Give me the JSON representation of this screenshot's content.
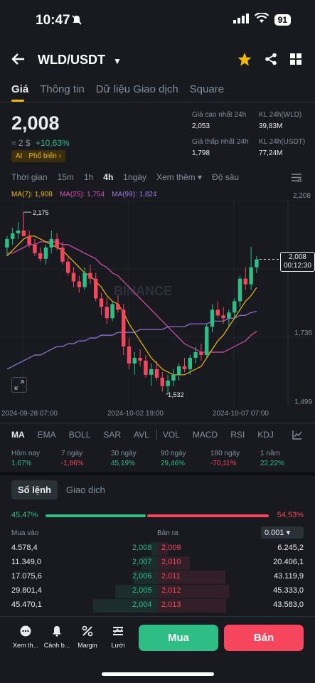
{
  "status": {
    "time": "10:47",
    "battery": "91"
  },
  "header": {
    "title": "WLD/USDT"
  },
  "tabs": [
    "Giá",
    "Thông tin",
    "Dữ liệu Giao dịch",
    "Square"
  ],
  "price": {
    "last": "2,008",
    "approx": "≈ 2 $",
    "change": "+10,63%",
    "ai_label": "AI",
    "ai_tag": "Phổ biến ›"
  },
  "stats": {
    "high_label": "Giá cao nhất 24h",
    "high_value": "2,053",
    "vol_wld_label": "KL 24h(WLD)",
    "vol_wld_value": "39,83M",
    "low_label": "Giá thấp nhất 24h",
    "low_value": "1,798",
    "vol_usdt_label": "KL 24h(USDT)",
    "vol_usdt_value": "77,24M"
  },
  "chart_tabs": [
    "Thời gian",
    "15m",
    "1h",
    "4h",
    "1ngày",
    "Xem thêm ▾",
    "Độ sâu"
  ],
  "ma": {
    "ma7": "MA(7): 1,908",
    "ma25": "MA(25): 1,754",
    "ma99": "MA(99): 1,824"
  },
  "chart_data": {
    "type": "candlestick",
    "title": "",
    "x_labels": [
      "2024-09-28 07:00",
      "2024-10-02 19:00",
      "2024-10-07 07:00"
    ],
    "y_ticks": [
      "2,208",
      "1,736",
      "1,499"
    ],
    "high_marker": "2,175",
    "low_marker": "1,532",
    "current_price": "2,008",
    "countdown": "00:12:30",
    "watermark": "BINANCE",
    "ylim": [
      1.499,
      2.208
    ],
    "candles": [
      [
        2.05,
        2.09,
        2.02,
        2.08
      ],
      [
        2.08,
        2.12,
        2.06,
        2.1
      ],
      [
        2.1,
        2.14,
        2.08,
        2.11
      ],
      [
        2.11,
        2.175,
        2.09,
        2.09
      ],
      [
        2.09,
        2.11,
        2.05,
        2.06
      ],
      [
        2.06,
        2.08,
        2.02,
        2.03
      ],
      [
        2.03,
        2.05,
        2.0,
        2.01
      ],
      [
        2.01,
        2.06,
        1.99,
        2.05
      ],
      [
        2.05,
        2.11,
        2.03,
        2.08
      ],
      [
        2.08,
        2.1,
        2.04,
        2.05
      ],
      [
        2.05,
        2.07,
        1.99,
        2.0
      ],
      [
        2.0,
        2.02,
        1.95,
        1.96
      ],
      [
        1.96,
        1.98,
        1.91,
        1.93
      ],
      [
        1.93,
        1.95,
        1.89,
        1.91
      ],
      [
        1.91,
        1.98,
        1.9,
        1.96
      ],
      [
        1.96,
        1.99,
        1.92,
        1.94
      ],
      [
        1.94,
        1.96,
        1.86,
        1.87
      ],
      [
        1.87,
        1.89,
        1.81,
        1.84
      ],
      [
        1.84,
        1.87,
        1.78,
        1.8
      ],
      [
        1.8,
        1.86,
        1.79,
        1.85
      ],
      [
        1.85,
        1.88,
        1.82,
        1.83
      ],
      [
        1.83,
        1.85,
        1.67,
        1.7
      ],
      [
        1.7,
        1.73,
        1.62,
        1.64
      ],
      [
        1.64,
        1.68,
        1.6,
        1.66
      ],
      [
        1.66,
        1.69,
        1.63,
        1.65
      ],
      [
        1.65,
        1.67,
        1.59,
        1.6
      ],
      [
        1.6,
        1.64,
        1.56,
        1.62
      ],
      [
        1.62,
        1.65,
        1.58,
        1.59
      ],
      [
        1.59,
        1.61,
        1.54,
        1.56
      ],
      [
        1.56,
        1.6,
        1.532,
        1.58
      ],
      [
        1.58,
        1.62,
        1.56,
        1.6
      ],
      [
        1.6,
        1.64,
        1.58,
        1.63
      ],
      [
        1.63,
        1.66,
        1.61,
        1.62
      ],
      [
        1.62,
        1.67,
        1.6,
        1.66
      ],
      [
        1.66,
        1.7,
        1.64,
        1.68
      ],
      [
        1.68,
        1.71,
        1.65,
        1.67
      ],
      [
        1.67,
        1.78,
        1.66,
        1.77
      ],
      [
        1.77,
        1.85,
        1.75,
        1.83
      ],
      [
        1.83,
        1.86,
        1.8,
        1.81
      ],
      [
        1.81,
        1.84,
        1.78,
        1.8
      ],
      [
        1.8,
        1.83,
        1.77,
        1.82
      ],
      [
        1.82,
        1.87,
        1.8,
        1.86
      ],
      [
        1.86,
        1.95,
        1.84,
        1.94
      ],
      [
        1.94,
        1.98,
        1.9,
        1.92
      ],
      [
        1.92,
        2.053,
        1.9,
        1.98
      ],
      [
        1.98,
        2.02,
        1.96,
        2.008
      ]
    ],
    "ma7": [
      2.02,
      2.04,
      2.06,
      2.08,
      2.09,
      2.09,
      2.08,
      2.07,
      2.06,
      2.05,
      2.04,
      2.02,
      2.0,
      1.98,
      1.96,
      1.95,
      1.93,
      1.91,
      1.88,
      1.86,
      1.85,
      1.82,
      1.78,
      1.75,
      1.72,
      1.69,
      1.66,
      1.64,
      1.62,
      1.61,
      1.6,
      1.6,
      1.6,
      1.61,
      1.62,
      1.63,
      1.66,
      1.69,
      1.72,
      1.74,
      1.77,
      1.8,
      1.83,
      1.86,
      1.88,
      1.908
    ],
    "ma25": [
      2.03,
      2.03,
      2.04,
      2.05,
      2.06,
      2.06,
      2.07,
      2.07,
      2.07,
      2.07,
      2.06,
      2.06,
      2.05,
      2.04,
      2.03,
      2.02,
      2.01,
      1.99,
      1.98,
      1.96,
      1.95,
      1.93,
      1.91,
      1.89,
      1.87,
      1.85,
      1.83,
      1.81,
      1.79,
      1.77,
      1.75,
      1.73,
      1.71,
      1.7,
      1.69,
      1.68,
      1.68,
      1.68,
      1.68,
      1.68,
      1.69,
      1.7,
      1.71,
      1.72,
      1.74,
      1.754
    ],
    "ma99": [
      1.62,
      1.63,
      1.64,
      1.65,
      1.66,
      1.67,
      1.67,
      1.68,
      1.69,
      1.7,
      1.7,
      1.71,
      1.71,
      1.72,
      1.72,
      1.73,
      1.73,
      1.74,
      1.74,
      1.74,
      1.75,
      1.75,
      1.75,
      1.75,
      1.76,
      1.76,
      1.76,
      1.76,
      1.76,
      1.77,
      1.77,
      1.77,
      1.77,
      1.78,
      1.78,
      1.78,
      1.78,
      1.79,
      1.79,
      1.79,
      1.8,
      1.8,
      1.81,
      1.81,
      1.82,
      1.824
    ]
  },
  "indicators": [
    "MA",
    "EMA",
    "BOLL",
    "SAR",
    "AVL",
    "VOL",
    "MACD",
    "RSI",
    "KDJ"
  ],
  "performance": [
    {
      "label": "Hôm nay",
      "value": "1,67%",
      "up": true
    },
    {
      "label": "7 ngày",
      "value": "-1,86%",
      "up": false
    },
    {
      "label": "30 ngày",
      "value": "45,19%",
      "up": true
    },
    {
      "label": "90 ngày",
      "value": "29,46%",
      "up": true
    },
    {
      "label": "180 ngày",
      "value": "-70,11%",
      "up": false
    },
    {
      "label": "1 năm",
      "value": "22,22%",
      "up": true
    }
  ],
  "orderbook": {
    "tab_active": "Sổ lệnh",
    "tab_other": "Giao dịch",
    "buy_ratio": "45,47%",
    "sell_ratio": "54,53%",
    "buy_fraction": 0.4547,
    "buy_label": "Mua vào",
    "sell_label": "Bán ra",
    "precision": "0.001 ▾",
    "rows": [
      {
        "bid_qty": "4.578,4",
        "bid": "2,008",
        "ask": "2,009",
        "ask_qty": "6.245,2"
      },
      {
        "bid_qty": "11.349,0",
        "bid": "2,007",
        "ask": "2,010",
        "ask_qty": "20.406,1"
      },
      {
        "bid_qty": "17.075,6",
        "bid": "2,006",
        "ask": "2,011",
        "ask_qty": "43.119,9"
      },
      {
        "bid_qty": "29.801,4",
        "bid": "2,005",
        "ask": "2,012",
        "ask_qty": "45.333,0"
      },
      {
        "bid_qty": "45.470,1",
        "bid": "2,004",
        "ask": "2,013",
        "ask_qty": "43.583,0"
      }
    ]
  },
  "bottom": {
    "more": "Xem th...",
    "alert": "Cảnh b...",
    "margin": "Margin",
    "grid": "Lưới",
    "buy": "Mua",
    "sell": "Bán"
  }
}
